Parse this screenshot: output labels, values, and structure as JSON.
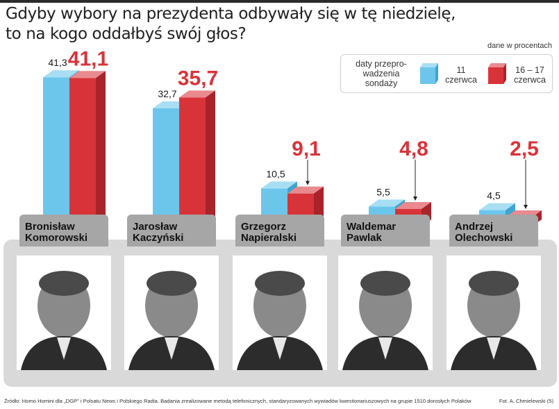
{
  "title_lines": [
    "Gdyby wybory na prezydenta odbywały się w tę niedzielę,",
    "to na kogo oddałbyś swój głos?"
  ],
  "unit_note": "dane w procentach",
  "legend": {
    "title_lines": [
      "daty przepro-",
      "wadzenia",
      "sondaży"
    ],
    "items": [
      {
        "label_lines": [
          "11",
          "czerwca"
        ],
        "color": "#6cc6ec"
      },
      {
        "label_lines": [
          "16 – 17",
          "czerwca"
        ],
        "color": "#d9333a"
      }
    ]
  },
  "chart_data": {
    "type": "bar",
    "categories": [
      "Bronisław Komorowski",
      "Jarosław Kaczyński",
      "Grzegorz Napieralski",
      "Waldemar Pawlak",
      "Andrzej Olechowski"
    ],
    "series": [
      {
        "name": "11 czerwca",
        "values": [
          41.3,
          32.7,
          10.5,
          5.5,
          4.5
        ],
        "labels": [
          "41,3",
          "32,7",
          "10,5",
          "5,5",
          "4,5"
        ],
        "color": "#6cc6ec"
      },
      {
        "name": "16 – 17 czerwca",
        "values": [
          41.1,
          35.7,
          9.1,
          4.8,
          2.5
        ],
        "labels": [
          "41,1",
          "35,7",
          "9,1",
          "4,8",
          "2,5"
        ],
        "color": "#d9333a"
      }
    ],
    "unit": "dane w procentach",
    "legend_position": "top-right",
    "grid": false
  },
  "candidates": [
    {
      "name_lines": [
        "Bronisław",
        "Komorowski"
      ]
    },
    {
      "name_lines": [
        "Jarosław",
        "Kaczyński"
      ]
    },
    {
      "name_lines": [
        "Grzegorz",
        "Napieralski"
      ]
    },
    {
      "name_lines": [
        "Waldemar",
        "Pawlak"
      ]
    },
    {
      "name_lines": [
        "Andrzej",
        "Olechowski"
      ]
    }
  ],
  "source": "Źródło: Homo Homini dla „DGP\" i Polsatu News i Polskiego Radia. Badania zrealizowane metodą telefonicznych, standaryzowanych wywiadów kwestionariuszowych na grupie 1510 dorosłych Polaków",
  "credit": "Fot. A. Chmielewski (5)"
}
